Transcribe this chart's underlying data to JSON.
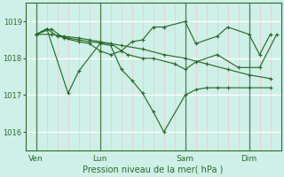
{
  "title": "Pression niveau de la mer( hPa )",
  "background_color": "#cff0e8",
  "plot_bg_color": "#cff0e8",
  "grid_h_color": "#ffffff",
  "grid_v_color": "#e8c8c8",
  "line_color": "#2a6a2a",
  "vline_color": "#4a7a4a",
  "ylim": [
    1015.5,
    1019.5
  ],
  "yticks": [
    1016,
    1017,
    1018,
    1019
  ],
  "xlim": [
    0,
    12.0
  ],
  "day_labels": [
    "Ven",
    "Lun",
    "Sam",
    "Dim"
  ],
  "day_positions": [
    0.5,
    3.5,
    7.5,
    10.5
  ],
  "vline_positions": [
    0.5,
    3.5,
    7.5,
    10.5
  ],
  "series": [
    {
      "x": [
        0.5,
        1.2,
        1.8,
        2.5,
        3.0,
        3.5,
        4.5,
        5.5,
        6.5,
        7.5,
        8.5,
        9.5,
        10.5,
        11.5
      ],
      "y": [
        1018.65,
        1018.65,
        1018.6,
        1018.55,
        1018.5,
        1018.45,
        1018.35,
        1018.25,
        1018.1,
        1018.0,
        1017.85,
        1017.7,
        1017.55,
        1017.45
      ]
    },
    {
      "x": [
        0.5,
        1.0,
        1.5,
        2.0,
        2.5,
        3.0,
        3.5,
        4.0,
        4.8,
        5.5,
        6.0,
        7.0,
        7.5,
        8.0,
        9.0,
        10.0,
        11.0,
        11.8
      ],
      "y": [
        1018.65,
        1018.8,
        1018.6,
        1018.55,
        1018.5,
        1018.45,
        1018.42,
        1018.4,
        1018.1,
        1018.0,
        1018.0,
        1017.85,
        1017.7,
        1017.9,
        1018.1,
        1017.75,
        1017.75,
        1018.65
      ]
    },
    {
      "x": [
        0.5,
        1.0,
        2.0,
        2.5,
        3.5,
        4.0,
        4.5,
        5.0,
        5.5,
        6.0,
        6.5,
        7.5,
        8.0,
        8.5,
        9.0,
        9.5,
        10.5,
        11.5
      ],
      "y": [
        1018.65,
        1018.8,
        1017.05,
        1017.65,
        1018.4,
        1018.35,
        1017.7,
        1017.4,
        1017.05,
        1016.55,
        1016.0,
        1017.0,
        1017.15,
        1017.2,
        1017.2,
        1017.2,
        1017.2,
        1017.2
      ]
    },
    {
      "x": [
        0.5,
        1.2,
        1.8,
        2.5,
        3.0,
        3.5,
        4.0,
        4.5,
        5.0,
        5.5,
        6.0,
        6.5,
        7.5,
        8.0,
        9.0,
        9.5,
        10.5,
        11.0,
        11.5
      ],
      "y": [
        1018.65,
        1018.8,
        1018.55,
        1018.45,
        1018.4,
        1018.2,
        1018.1,
        1018.2,
        1018.45,
        1018.5,
        1018.85,
        1018.85,
        1019.0,
        1018.4,
        1018.6,
        1018.85,
        1018.65,
        1018.1,
        1018.65
      ]
    }
  ]
}
